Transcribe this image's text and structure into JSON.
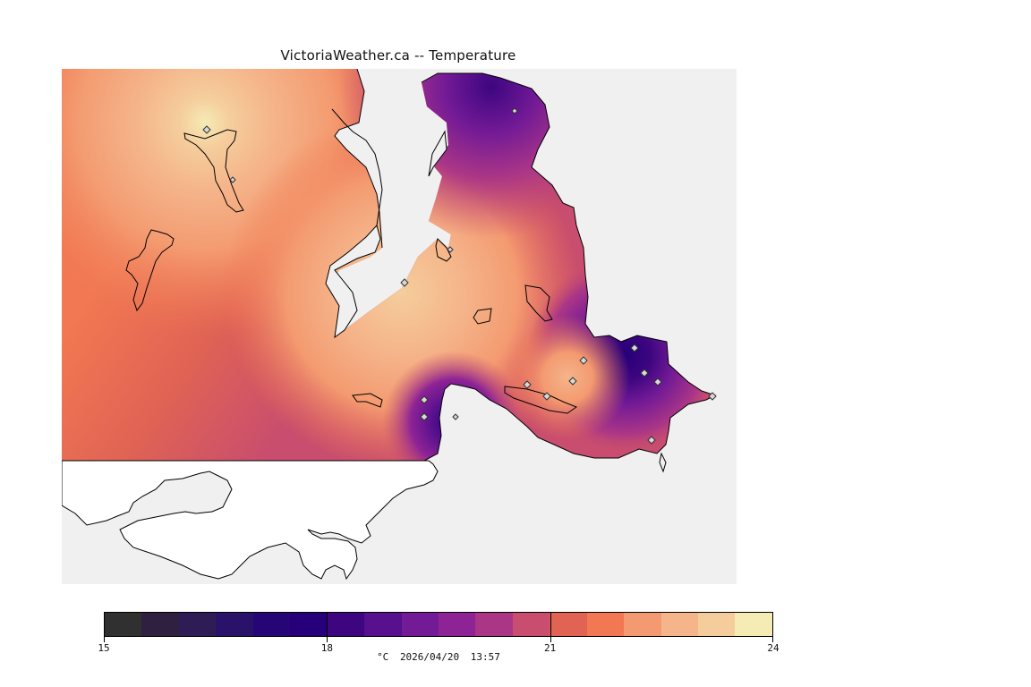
{
  "title": "VictoriaWeather.ca -- Temperature",
  "map": {
    "background_color": "#f0f0f0",
    "land_color": "#ffffff",
    "coastline_color": "#000000",
    "station_marker_icon": "diamond-icon"
  },
  "legend": {
    "min": 15,
    "max": 24,
    "tick_labels": [
      "15",
      "18",
      "21",
      "24"
    ],
    "tick_values": [
      15,
      18,
      21,
      24
    ],
    "colors": [
      "#303030",
      "#2f2040",
      "#2e1d55",
      "#2a126a",
      "#260577",
      "#26007a",
      "#3d0580",
      "#57108e",
      "#731a96",
      "#8e2396",
      "#ab3686",
      "#c84d6e",
      "#e06354",
      "#f17852",
      "#f49a70",
      "#f5b48a",
      "#f5cd9c",
      "#f5ebb5"
    ],
    "unit": "°C",
    "date": "2026/04/20",
    "time": "13:57"
  }
}
